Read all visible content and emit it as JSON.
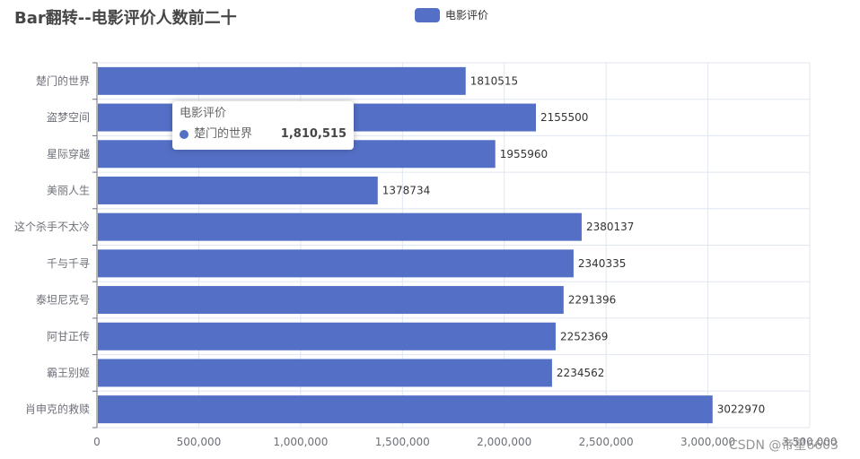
{
  "title": "Bar翻转--电影评价人数前二十",
  "legend": {
    "label": "电影评价",
    "color": "#5470c6"
  },
  "tooltip": {
    "title": "电影评价",
    "name": "楚门的世界",
    "value": "1,810,515"
  },
  "watermark": "CSDN @帝星6603",
  "chart_data": {
    "type": "bar",
    "orientation": "horizontal",
    "title": "Bar翻转--电影评价人数前二十",
    "categories": [
      "楚门的世界",
      "盗梦空间",
      "星际穿越",
      "美丽人生",
      "这个杀手不太冷",
      "千与千寻",
      "泰坦尼克号",
      "阿甘正传",
      "霸王别姬",
      "肖申克的救赎"
    ],
    "series": [
      {
        "name": "电影评价",
        "values": [
          1810515,
          2155500,
          1955960,
          1378734,
          2380137,
          2340335,
          2291396,
          2252369,
          2234562,
          3022970
        ]
      }
    ],
    "xlim": [
      0,
      3500000
    ],
    "xticks": [
      "0",
      "500,000",
      "1,000,000",
      "1,500,000",
      "2,000,000",
      "2,500,000",
      "3,000,000",
      "3,500,000"
    ],
    "data_labels": true,
    "grid": true,
    "legend_position": "top-center",
    "bar_color": "#5470c6"
  }
}
